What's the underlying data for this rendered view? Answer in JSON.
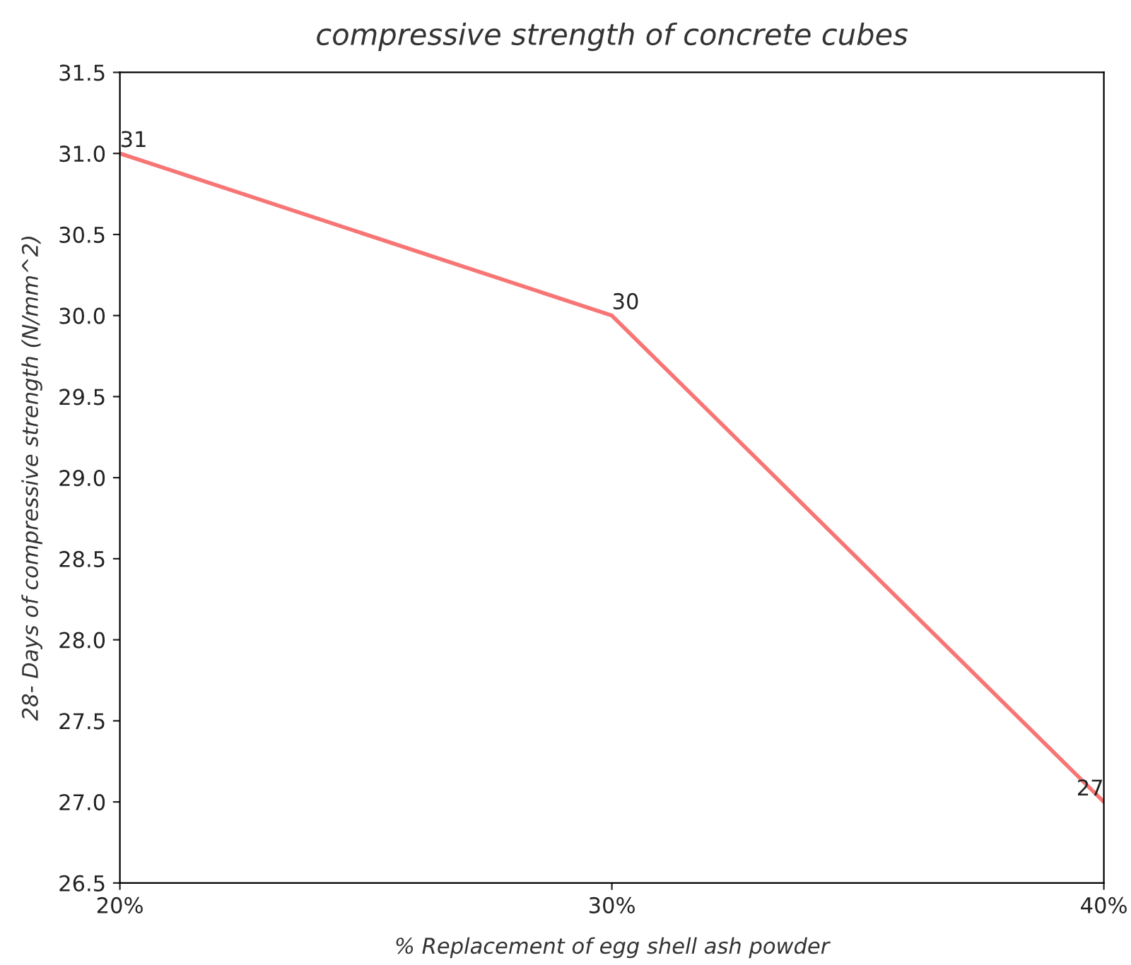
{
  "chart_data": {
    "type": "line",
    "title": "compressive strength of concrete cubes",
    "xlabel": "% Replacement of egg shell ash powder",
    "ylabel": "28- Days of compressive strength (N/mm^2)",
    "categories": [
      "20%",
      "30%",
      "40%"
    ],
    "series": [
      {
        "color": "#f87575",
        "values": [
          31,
          30,
          27
        ]
      }
    ],
    "ylim": [
      26.5,
      31.5
    ],
    "yticks": [
      26.5,
      {
        "value": 27,
        "label": "27.0"
      },
      27.5,
      {
        "value": 28,
        "label": "28.0"
      },
      28.5,
      {
        "value": 29,
        "label": "29.0"
      },
      29.5,
      {
        "value": 30,
        "label": "30.0"
      },
      30.5,
      {
        "value": 31,
        "label": "31.0"
      },
      31.5
    ],
    "data_labels": true,
    "grid": false,
    "legend": false,
    "marker": "none",
    "line_style": "solid"
  }
}
